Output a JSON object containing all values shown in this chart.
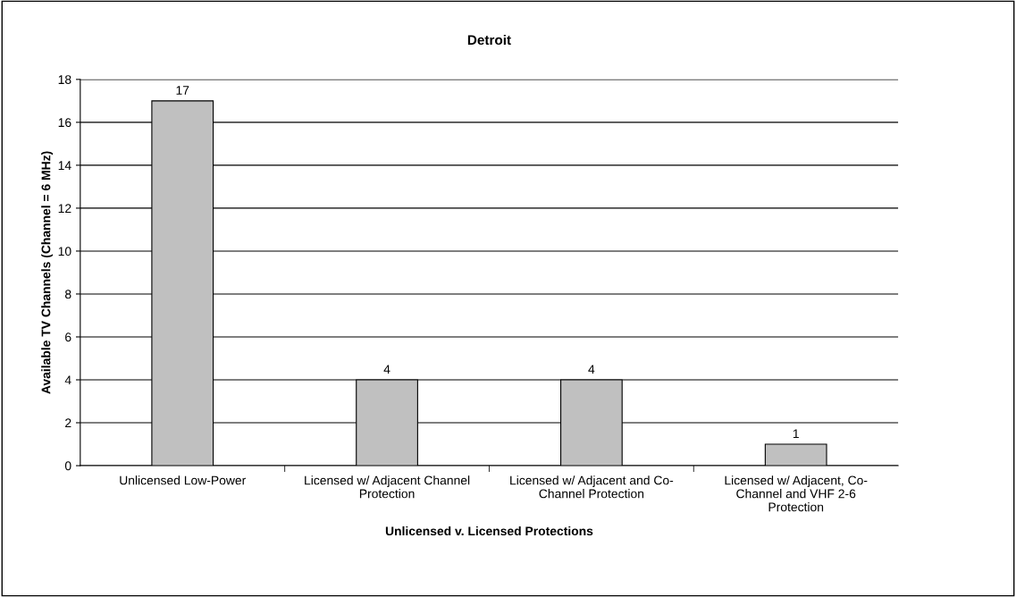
{
  "chart_data": {
    "type": "bar",
    "title": "Detroit",
    "xlabel": "Unlicensed v. Licensed Protections",
    "ylabel": "Available TV Channels (Channel = 6 MHz)",
    "categories": [
      "Unlicensed Low-Power",
      "Licensed w/ Adjacent Channel\nProtection",
      "Licensed w/ Adjacent and Co-\nChannel Protection",
      "Licensed w/ Adjacent, Co-\nChannel and VHF 2-6\nProtection"
    ],
    "values": [
      17,
      4,
      4,
      1
    ],
    "color": "#c0c0c0",
    "ylim": [
      0,
      18
    ],
    "yticks": [
      0,
      2,
      4,
      6,
      8,
      10,
      12,
      14,
      16,
      18
    ],
    "grid": "y",
    "data_labels": true
  }
}
